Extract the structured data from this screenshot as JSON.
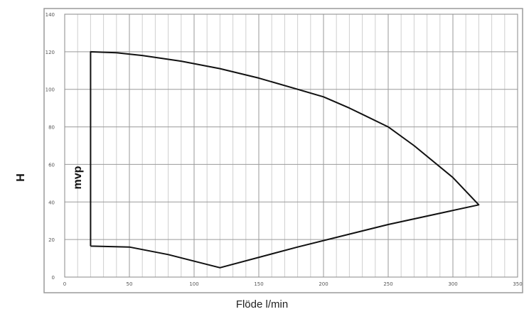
{
  "chart_data": {
    "type": "line",
    "title": "",
    "xlabel": "Flöde l/min",
    "ylabel": "H mvp",
    "xlim": [
      0,
      350
    ],
    "ylim": [
      0,
      140
    ],
    "x_ticks": [
      0,
      50,
      100,
      150,
      200,
      250,
      300,
      350
    ],
    "y_ticks": [
      0,
      20,
      40,
      60,
      80,
      100,
      120,
      140
    ],
    "grid": true,
    "series": [
      {
        "points": [
          [
            20,
            16.5
          ],
          [
            50,
            16
          ],
          [
            80,
            12
          ],
          [
            120,
            5
          ],
          [
            180,
            16
          ],
          [
            250,
            28
          ],
          [
            320,
            38.5
          ],
          [
            300,
            53
          ],
          [
            270,
            70
          ],
          [
            250,
            80
          ],
          [
            220,
            90
          ],
          [
            200,
            96
          ],
          [
            180,
            100
          ],
          [
            150,
            106
          ],
          [
            120,
            111
          ],
          [
            90,
            115
          ],
          [
            60,
            118
          ],
          [
            40,
            119.5
          ],
          [
            20,
            120
          ],
          [
            20,
            16.5
          ]
        ]
      }
    ]
  }
}
